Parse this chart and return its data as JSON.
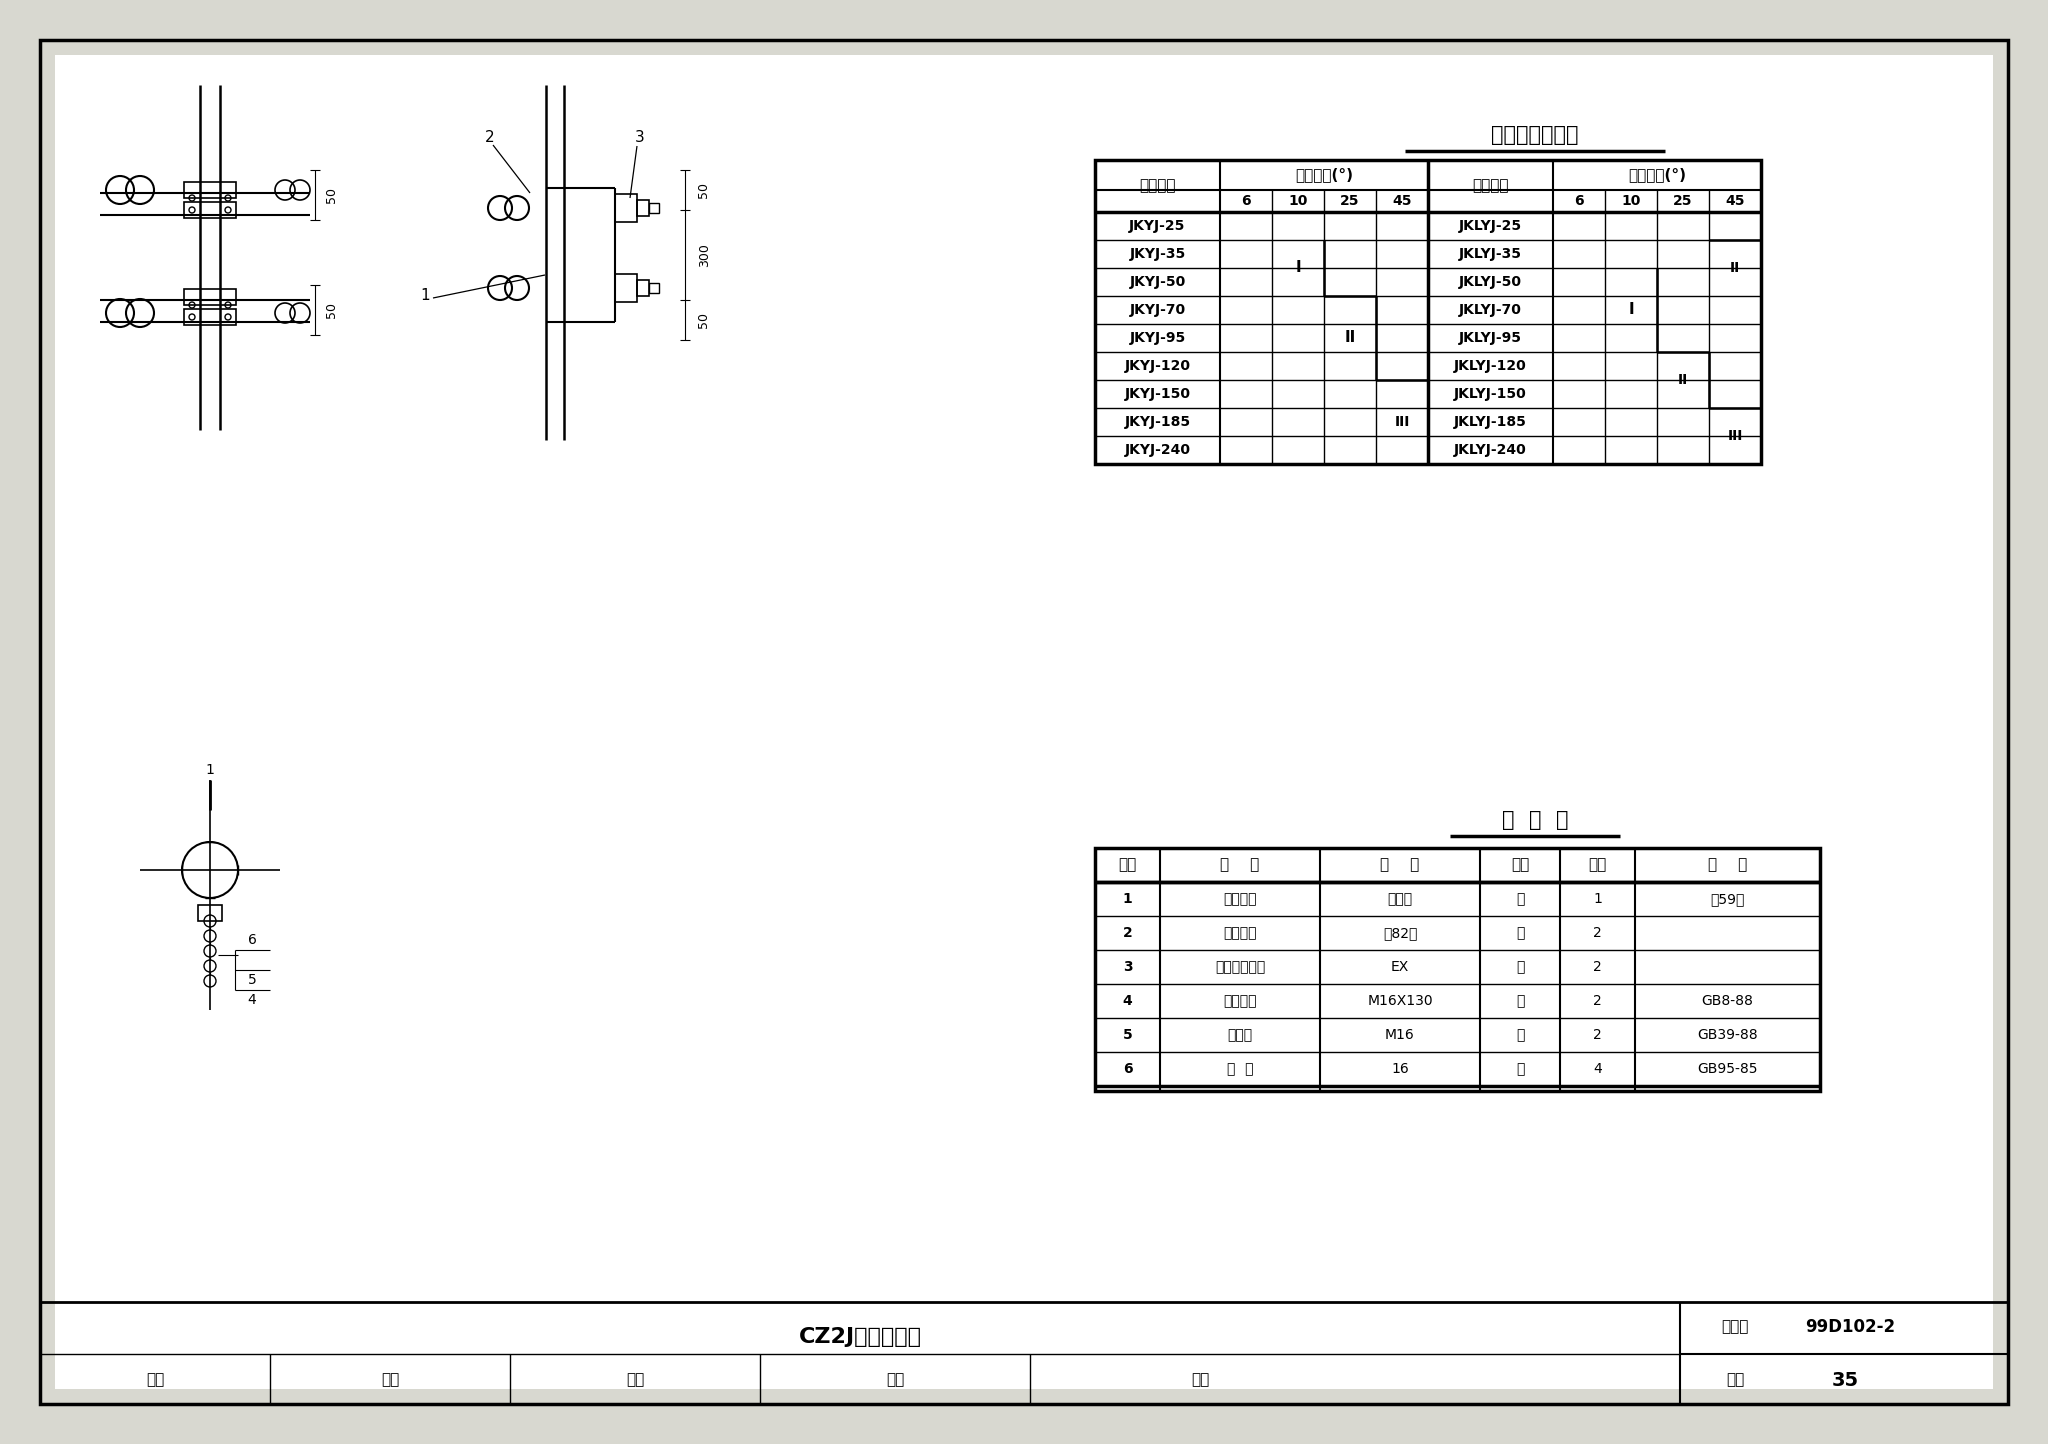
{
  "page_bg": "#e8e8e0",
  "draw_bg": "#ffffff",
  "table1_title": "槽钢横担选择表",
  "table1_rows_left": [
    "JKYJ-25",
    "JKYJ-35",
    "JKYJ-50",
    "JKYJ-70",
    "JKYJ-95",
    "JKYJ-120",
    "JKYJ-150",
    "JKYJ-185",
    "JKYJ-240"
  ],
  "table1_rows_right": [
    "JKLYJ-25",
    "JKLYJ-35",
    "JKLYJ-50",
    "JKLYJ-70",
    "JKLYJ-95",
    "JKLYJ-120",
    "JKLYJ-150",
    "JKLYJ-185",
    "JKLYJ-240"
  ],
  "table2_title": "明  细  表",
  "table2_headers": [
    "序号",
    "名    称",
    "规    格",
    "单位",
    "数量",
    "附    注"
  ],
  "table2_rows": [
    [
      "1",
      "槽钢横担",
      "见上表",
      "根",
      "1",
      "见59页"
    ],
    [
      "2",
      "槽钢抱箍",
      "见82页",
      "付",
      "2",
      ""
    ],
    [
      "3",
      "线轴式绝缘子",
      "EX",
      "个",
      "2",
      ""
    ],
    [
      "4",
      "方头螺栓",
      "M16X130",
      "个",
      "2",
      "GB8-88"
    ],
    [
      "5",
      "方螺母",
      "M16",
      "个",
      "2",
      "GB39-88"
    ],
    [
      "6",
      "垫  圈",
      "16",
      "个",
      "4",
      "GB95-85"
    ]
  ],
  "bottom_title": "CZ2J横担组装图",
  "figure_set_label": "图集号",
  "figure_set_value": "99D102-2",
  "page_label": "页号",
  "page_number": "35",
  "bottom_labels": [
    "审核",
    "校对",
    "设计",
    "天津"
  ]
}
